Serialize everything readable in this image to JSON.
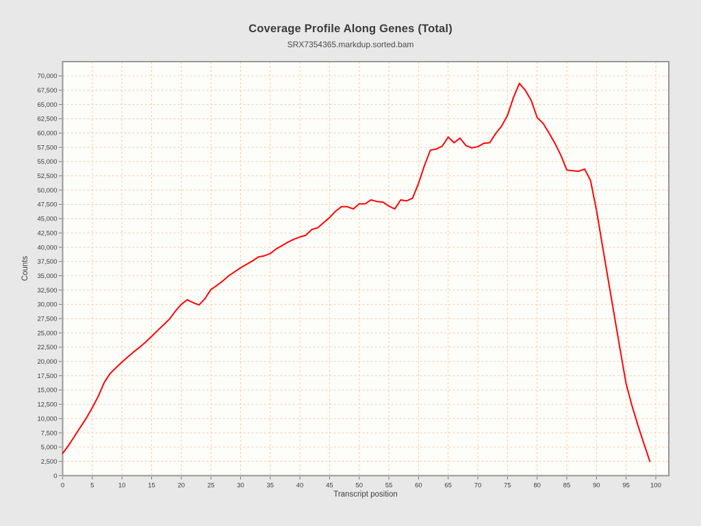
{
  "page": {
    "background_color": "#e8e8e8",
    "panel_color": "#fdfdfa",
    "frame_color": "#969696",
    "tick_color": "#757575",
    "text_color": "#3d3d3d"
  },
  "chart_data": {
    "type": "line",
    "title": "Coverage Profile Along Genes (Total)",
    "subtitle": "SRX7354365.markdup.sorted.bam",
    "xlabel": "Transcript position",
    "ylabel": "Counts",
    "xlim": [
      0,
      102.2
    ],
    "ylim": [
      0,
      72500
    ],
    "x_ticks": [
      0,
      5,
      10,
      15,
      20,
      25,
      30,
      35,
      40,
      45,
      50,
      55,
      60,
      65,
      70,
      75,
      80,
      85,
      90,
      95,
      100
    ],
    "y_ticks": [
      0,
      2500,
      5000,
      7500,
      10000,
      12500,
      15000,
      17500,
      20000,
      22500,
      25000,
      27500,
      30000,
      32500,
      35000,
      37500,
      40000,
      42500,
      45000,
      47500,
      50000,
      52500,
      55000,
      57500,
      60000,
      62500,
      65000,
      67500,
      70000
    ],
    "grid": true,
    "grid_style": "dashed",
    "grid_color": "#f5cda6",
    "legend": "none",
    "series": [
      {
        "name": "SRX7354365.markdup.sorted.bam",
        "color": "#ff0000",
        "x": [
          0,
          1,
          2,
          3,
          4,
          5,
          6,
          7,
          8,
          9,
          10,
          11,
          12,
          13,
          14,
          15,
          16,
          17,
          18,
          19,
          20,
          21,
          22,
          23,
          24,
          25,
          26,
          27,
          28,
          29,
          30,
          31,
          32,
          33,
          34,
          35,
          36,
          37,
          38,
          39,
          40,
          41,
          42,
          43,
          44,
          45,
          46,
          47,
          48,
          49,
          50,
          51,
          52,
          53,
          54,
          55,
          56,
          57,
          58,
          59,
          60,
          61,
          62,
          63,
          64,
          65,
          66,
          67,
          68,
          69,
          70,
          71,
          72,
          73,
          74,
          75,
          76,
          77,
          78,
          79,
          80,
          81,
          82,
          83,
          84,
          85,
          86,
          87,
          88,
          89,
          90,
          91,
          92,
          93,
          94,
          95,
          96,
          97,
          98,
          99
        ],
        "values": [
          3900,
          5300,
          6900,
          8500,
          10100,
          11900,
          13900,
          16300,
          17900,
          18900,
          19900,
          20800,
          21700,
          22500,
          23400,
          24400,
          25400,
          26400,
          27400,
          28800,
          30000,
          30800,
          30300,
          29900,
          31000,
          32600,
          33300,
          34100,
          35000,
          35700,
          36400,
          37000,
          37600,
          38300,
          38500,
          38900,
          39700,
          40300,
          40900,
          41400,
          41800,
          42100,
          43100,
          43400,
          44300,
          45200,
          46300,
          47100,
          47100,
          46700,
          47600,
          47600,
          48300,
          48000,
          47900,
          47200,
          46700,
          48300,
          48100,
          48600,
          51200,
          54300,
          57000,
          57200,
          57700,
          59300,
          58300,
          59100,
          57800,
          57400,
          57600,
          58200,
          58300,
          59900,
          61200,
          63100,
          66200,
          68700,
          67500,
          65700,
          62700,
          61700,
          60000,
          58200,
          56100,
          53500,
          53400,
          53300,
          53700,
          51700,
          46500,
          40300,
          34200,
          28100,
          22000,
          16100,
          12200,
          8800,
          5600,
          2500
        ]
      }
    ]
  }
}
